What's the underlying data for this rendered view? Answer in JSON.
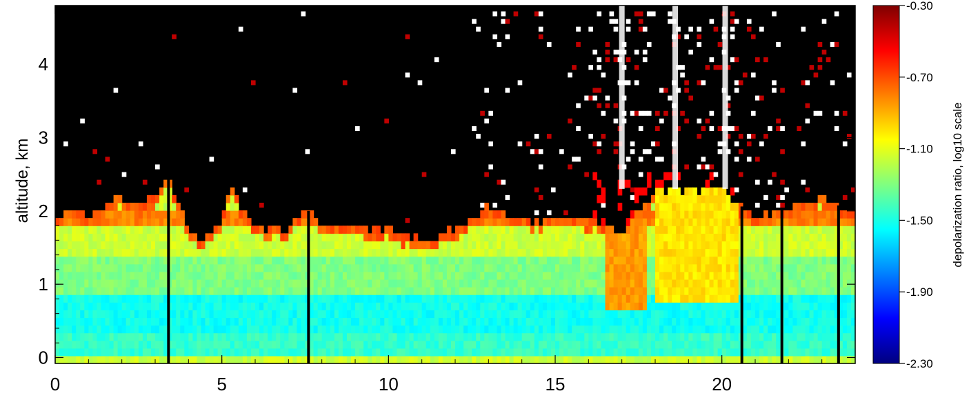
{
  "chart_data": {
    "type": "heatmap",
    "title": "",
    "xlabel": "",
    "ylabel": "altitude,  km",
    "xlim": [
      0,
      24
    ],
    "ylim": [
      -0.08,
      4.8
    ],
    "xticks": [
      "0",
      "5",
      "10",
      "15",
      "20"
    ],
    "xtick_values": [
      0,
      5,
      10,
      15,
      20
    ],
    "yticks": [
      "0",
      "1",
      "2",
      "3",
      "4"
    ],
    "ytick_values": [
      0,
      1,
      2,
      3,
      4
    ],
    "colorbar": {
      "label": "depolarization ratio, log10 scale",
      "range": [
        -2.3,
        -0.3
      ],
      "ticks": [
        "-0.30",
        "-0.70",
        "-1.10",
        "-1.50",
        "-1.90",
        "-2.30"
      ],
      "tick_values": [
        -0.3,
        -0.7,
        -1.1,
        -1.5,
        -1.9,
        -2.3
      ],
      "colormap": "jet"
    },
    "layer_top_km": [
      {
        "x": 0.0,
        "top": 1.85
      },
      {
        "x": 0.5,
        "top": 2.05
      },
      {
        "x": 1.0,
        "top": 1.9
      },
      {
        "x": 1.5,
        "top": 2.05
      },
      {
        "x": 2.0,
        "top": 2.2
      },
      {
        "x": 2.5,
        "top": 2.05
      },
      {
        "x": 3.0,
        "top": 2.2
      },
      {
        "x": 3.4,
        "top": 2.45
      },
      {
        "x": 4.0,
        "top": 1.75
      },
      {
        "x": 4.5,
        "top": 1.6
      },
      {
        "x": 5.0,
        "top": 1.9
      },
      {
        "x": 5.3,
        "top": 2.3
      },
      {
        "x": 6.0,
        "top": 1.75
      },
      {
        "x": 7.0,
        "top": 1.75
      },
      {
        "x": 7.5,
        "top": 2.05
      },
      {
        "x": 8.0,
        "top": 1.8
      },
      {
        "x": 9.0,
        "top": 1.8
      },
      {
        "x": 10.0,
        "top": 1.75
      },
      {
        "x": 11.0,
        "top": 1.6
      },
      {
        "x": 12.0,
        "top": 1.75
      },
      {
        "x": 13.0,
        "top": 2.05
      },
      {
        "x": 14.0,
        "top": 1.85
      },
      {
        "x": 15.0,
        "top": 1.9
      },
      {
        "x": 16.0,
        "top": 1.9
      },
      {
        "x": 17.0,
        "top": 1.7
      },
      {
        "x": 18.0,
        "top": 2.3
      },
      {
        "x": 19.0,
        "top": 2.3
      },
      {
        "x": 20.0,
        "top": 2.3
      },
      {
        "x": 21.0,
        "top": 1.9
      },
      {
        "x": 22.0,
        "top": 2.05
      },
      {
        "x": 23.0,
        "top": 2.2
      },
      {
        "x": 24.0,
        "top": 1.95
      }
    ],
    "depolarization_profile": [
      {
        "altitude_range": [
          0.0,
          0.3
        ],
        "value": -1.45
      },
      {
        "altitude_range": [
          0.3,
          0.9
        ],
        "value": -1.52
      },
      {
        "altitude_range": [
          0.9,
          1.4
        ],
        "value": -1.3
      },
      {
        "altitude_range": [
          1.4,
          1.8
        ],
        "value": -1.15
      },
      {
        "altitude_range": [
          1.8,
          2.0
        ],
        "value": -0.8
      },
      {
        "region": "x 16.5-17.8, altitude 0.6-1.9",
        "value": -0.85
      },
      {
        "region": "x 18-20.5, altitude 0.8-2.3",
        "value": -1.0
      }
    ],
    "vertical_gap_lines_x": [
      3.4,
      7.6,
      20.6,
      21.8,
      23.5
    ],
    "white_streak_x": [
      17.0,
      18.6,
      20.1
    ],
    "background_above_layer": "no data (black)"
  }
}
